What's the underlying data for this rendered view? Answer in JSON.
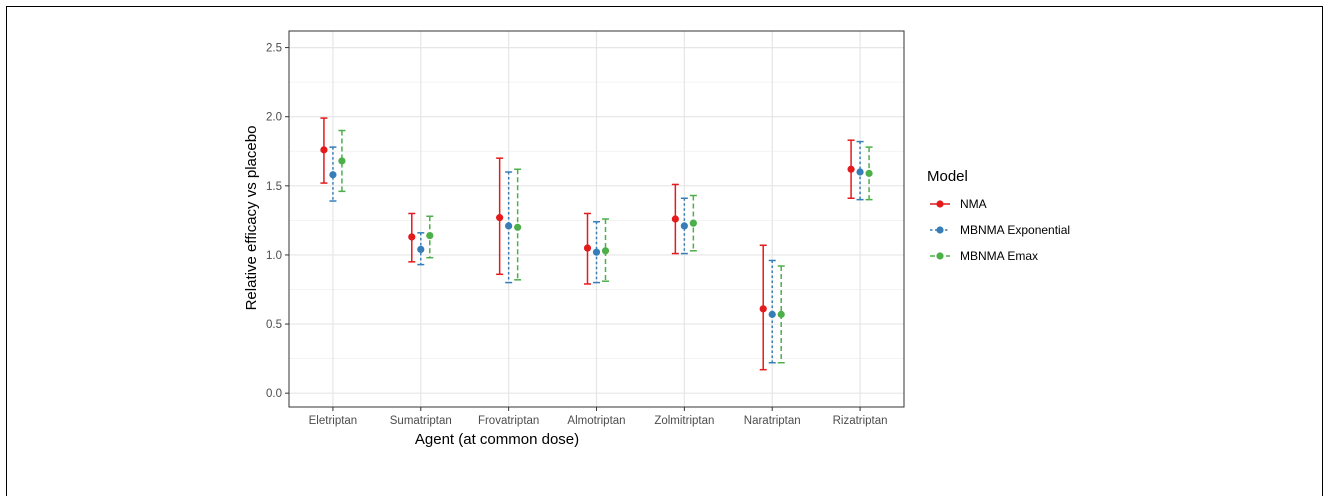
{
  "chart_data": {
    "type": "scatter",
    "subtype": "point-range",
    "xlabel": "Agent (at common dose)",
    "ylabel": "Relative efficacy vs placebo",
    "ylim": [
      -0.1,
      2.62
    ],
    "y_ticks": [
      "0.0",
      "0.5",
      "1.0",
      "1.5",
      "2.0",
      "2.5"
    ],
    "y_tick_values": [
      0.0,
      0.5,
      1.0,
      1.5,
      2.0,
      2.5
    ],
    "categories": [
      "Eletriptan",
      "Sumatriptan",
      "Frovatriptan",
      "Almotriptan",
      "Zolmitriptan",
      "Naratriptan",
      "Rizatriptan"
    ],
    "grid": true,
    "legend": {
      "title": "Model",
      "position": "right"
    },
    "series": [
      {
        "name": "NMA",
        "color": "#e41a1c",
        "linestyle": "solid",
        "values": [
          1.76,
          1.13,
          1.27,
          1.05,
          1.26,
          0.61,
          1.62
        ],
        "lower": [
          1.52,
          0.95,
          0.86,
          0.79,
          1.01,
          0.17,
          1.41
        ],
        "upper": [
          1.99,
          1.3,
          1.7,
          1.3,
          1.51,
          1.07,
          1.83
        ]
      },
      {
        "name": "MBNMA Exponential",
        "color": "#377eb8",
        "linestyle": "dotted",
        "values": [
          1.58,
          1.04,
          1.21,
          1.02,
          1.21,
          0.57,
          1.6
        ],
        "lower": [
          1.39,
          0.93,
          0.8,
          0.8,
          1.01,
          0.22,
          1.4
        ],
        "upper": [
          1.78,
          1.16,
          1.6,
          1.24,
          1.41,
          0.96,
          1.82
        ]
      },
      {
        "name": "MBNMA Emax",
        "color": "#4daf4a",
        "linestyle": "dashed",
        "values": [
          1.68,
          1.14,
          1.2,
          1.03,
          1.23,
          0.57,
          1.59
        ],
        "lower": [
          1.46,
          0.98,
          0.82,
          0.81,
          1.03,
          0.22,
          1.4
        ],
        "upper": [
          1.9,
          1.28,
          1.62,
          1.26,
          1.43,
          0.92,
          1.78
        ]
      }
    ]
  }
}
